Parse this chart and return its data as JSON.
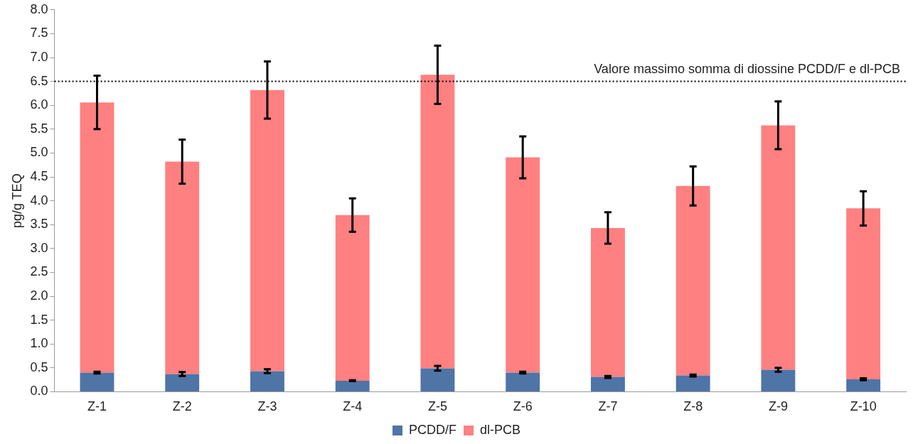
{
  "chart_data": {
    "type": "bar",
    "stacked": true,
    "ylabel": "pg/g TEQ",
    "categories": [
      "Z-1",
      "Z-2",
      "Z-3",
      "Z-4",
      "Z-5",
      "Z-6",
      "Z-7",
      "Z-8",
      "Z-9",
      "Z-10"
    ],
    "series": [
      {
        "name": "PCDD/F",
        "color": "#4f74a6",
        "values": [
          0.4,
          0.37,
          0.43,
          0.23,
          0.49,
          0.4,
          0.31,
          0.34,
          0.46,
          0.26
        ],
        "errors": [
          0.02,
          0.04,
          0.04,
          0.01,
          0.05,
          0.02,
          0.02,
          0.02,
          0.04,
          0.02
        ]
      },
      {
        "name": "dl-PCB",
        "color": "#ff8080",
        "values": [
          5.66,
          4.45,
          5.89,
          3.47,
          6.15,
          4.51,
          3.12,
          3.97,
          5.12,
          3.58
        ],
        "errors": [
          0.56,
          0.46,
          0.6,
          0.35,
          0.61,
          0.44,
          0.33,
          0.41,
          0.5,
          0.36
        ]
      }
    ],
    "ylim": [
      0,
      8
    ],
    "yticks": [
      {
        "value": 0,
        "label": "0.0"
      },
      {
        "value": 0.5,
        "label": "0.5"
      },
      {
        "value": 1,
        "label": "1.0"
      },
      {
        "value": 1.5,
        "label": "1.5"
      },
      {
        "value": 2,
        "label": "2.0"
      },
      {
        "value": 2.5,
        "label": "2.5"
      },
      {
        "value": 3,
        "label": "3.0"
      },
      {
        "value": 3.5,
        "label": "3.5"
      },
      {
        "value": 4,
        "label": "4.0"
      },
      {
        "value": 4.5,
        "label": "4.5"
      },
      {
        "value": 5,
        "label": "5.0"
      },
      {
        "value": 5.5,
        "label": "5.5"
      },
      {
        "value": 6,
        "label": "6.0"
      },
      {
        "value": 6.5,
        "label": "6.5"
      },
      {
        "value": 7,
        "label": "7.0"
      },
      {
        "value": 7.5,
        "label": "7.5"
      },
      {
        "value": 8,
        "label": "8.0"
      }
    ],
    "ref_lines": [
      {
        "axis": "y",
        "value": 6.5,
        "label": "Valore massimo somma di diossine PCDD/F e dl-PCB",
        "color": "#000000",
        "line_style": "dotted"
      }
    ],
    "grid": false,
    "legend": "bottom"
  }
}
